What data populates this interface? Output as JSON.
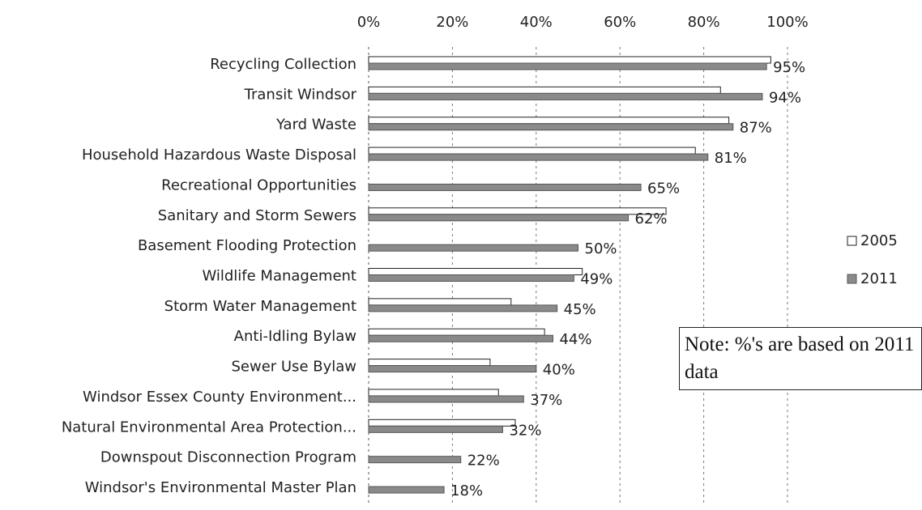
{
  "chart_data": {
    "type": "hbar",
    "categories": [
      "Recycling Collection",
      "Transit Windsor",
      "Yard Waste",
      "Household Hazardous Waste Disposal",
      "Recreational Opportunities",
      "Sanitary and Storm Sewers",
      "Basement Flooding Protection",
      "Wildlife Management",
      "Storm Water Management",
      "Anti-Idling Bylaw",
      "Sewer Use Bylaw",
      "Windsor Essex County Environment...",
      "Natural Environmental Area Protection...",
      "Downspout Disconnection Program",
      "Windsor's Environmental Master Plan"
    ],
    "series": [
      {
        "name": "2005",
        "color": "#ffffff",
        "values": [
          96,
          84,
          86,
          78,
          null,
          71,
          null,
          51,
          34,
          42,
          29,
          31,
          35,
          null,
          null
        ]
      },
      {
        "name": "2011",
        "color": "#8a8a8a",
        "values": [
          95,
          94,
          87,
          81,
          65,
          62,
          50,
          49,
          45,
          44,
          40,
          37,
          32,
          22,
          18
        ],
        "value_labels": [
          "95%",
          "94%",
          "87%",
          "81%",
          "65%",
          "62%",
          "50%",
          "49%",
          "45%",
          "44%",
          "40%",
          "37%",
          "32%",
          "22%",
          "18%"
        ]
      }
    ],
    "xlim": [
      0,
      100
    ],
    "xticks": [
      {
        "value": 0,
        "label": "0%"
      },
      {
        "value": 20,
        "label": "20%"
      },
      {
        "value": 40,
        "label": "40%"
      },
      {
        "value": 60,
        "label": "60%"
      },
      {
        "value": 80,
        "label": "80%"
      },
      {
        "value": 100,
        "label": "100%"
      }
    ],
    "grid": true,
    "legend": "right",
    "note": "Note: %'s are based on 2011 data"
  }
}
